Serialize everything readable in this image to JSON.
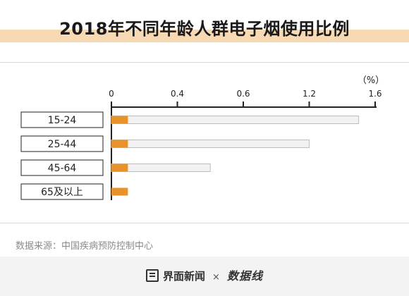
{
  "title": "2018年不同年龄人群电子烟使用比例",
  "unit_label": "（%）",
  "source": "数据来源：中国疾病预防控制中心",
  "footer": {
    "brand": "界面新闻",
    "separator": "×",
    "partner": "数据线"
  },
  "colors": {
    "bar": "#e8922a",
    "track_fill": "#f2f2f2",
    "track_stroke": "#bdbdbd",
    "title_band": "#f7d9b3",
    "axis": "#222222"
  },
  "chart_data": {
    "type": "bar",
    "orientation": "horizontal",
    "title": "2018年不同年龄人群电子烟使用比例",
    "xlabel": "",
    "ylabel": "",
    "unit": "（%）",
    "categories": [
      "15-24",
      "25-44",
      "45-64",
      "65及以上"
    ],
    "values": [
      0.1,
      0.1,
      0.1,
      0.1
    ],
    "track_values": [
      1.5,
      1.2,
      0.6,
      0.1
    ],
    "xlim": [
      0,
      1.6
    ],
    "xticks": [
      "0",
      "0.4",
      "0.6",
      "1.2",
      "1.6"
    ],
    "grid": false,
    "legend": "none"
  }
}
